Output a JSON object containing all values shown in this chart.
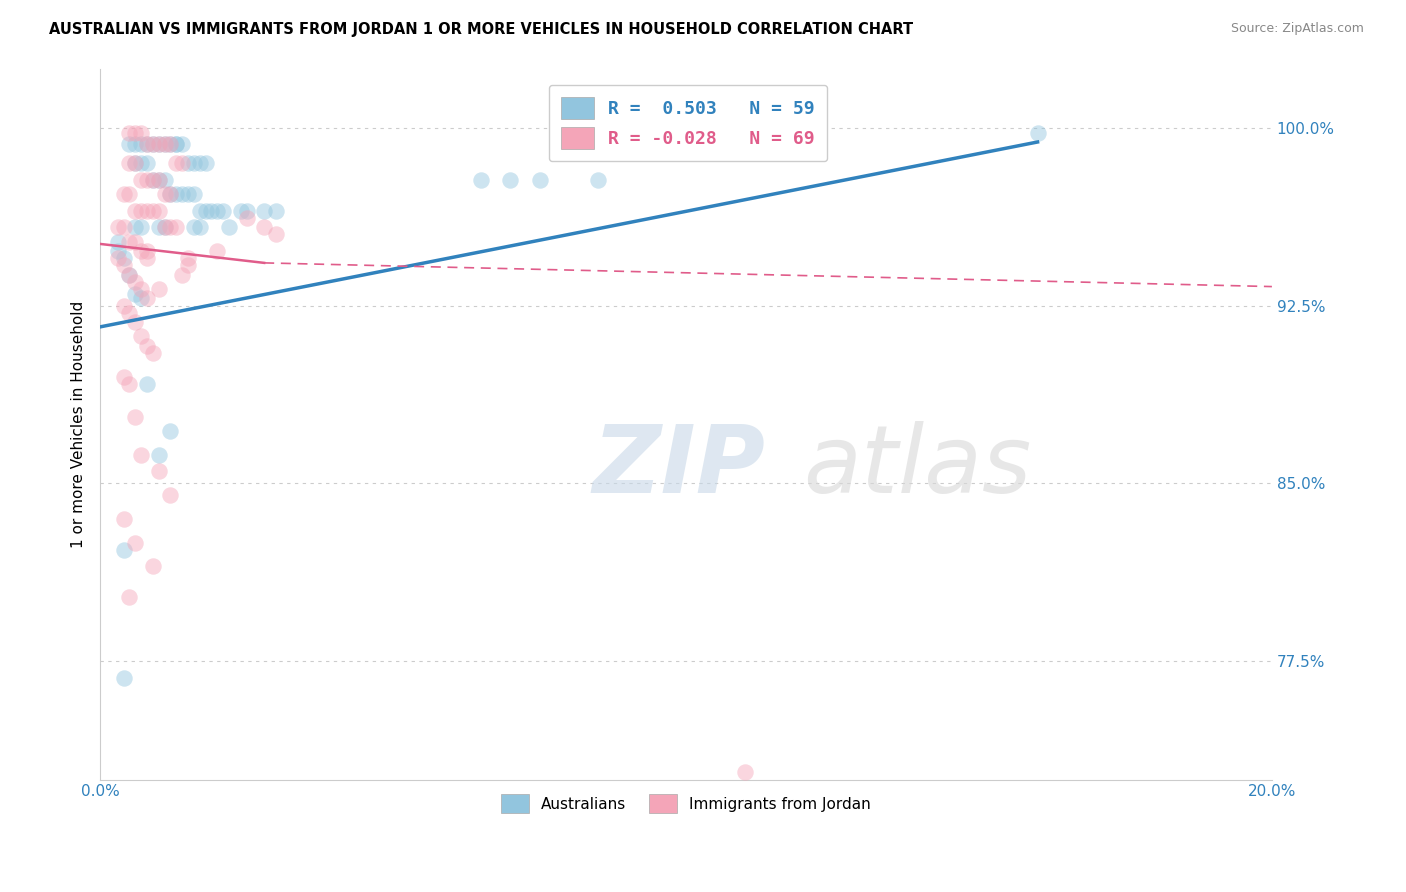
{
  "title": "AUSTRALIAN VS IMMIGRANTS FROM JORDAN 1 OR MORE VEHICLES IN HOUSEHOLD CORRELATION CHART",
  "source": "Source: ZipAtlas.com",
  "ylabel": "1 or more Vehicles in Household",
  "ytick_labels": [
    "77.5%",
    "85.0%",
    "92.5%",
    "100.0%"
  ],
  "ytick_values": [
    0.775,
    0.85,
    0.925,
    1.0
  ],
  "xlim": [
    0.0,
    0.2
  ],
  "ylim": [
    0.725,
    1.025
  ],
  "legend_label1": "Australians",
  "legend_label2": "Immigrants from Jordan",
  "blue_color": "#92c5de",
  "pink_color": "#f4a5b8",
  "blue_line_color": "#3182bd",
  "pink_line_color": "#e05c8a",
  "blue_line": [
    [
      0.0,
      0.916
    ],
    [
      0.16,
      0.994
    ]
  ],
  "pink_solid_line": [
    [
      0.0,
      0.951
    ],
    [
      0.028,
      0.943
    ]
  ],
  "pink_dashed_line": [
    [
      0.028,
      0.943
    ],
    [
      0.2,
      0.933
    ]
  ],
  "blue_scatter": [
    [
      0.005,
      0.993
    ],
    [
      0.006,
      0.993
    ],
    [
      0.007,
      0.993
    ],
    [
      0.008,
      0.993
    ],
    [
      0.009,
      0.993
    ],
    [
      0.01,
      0.993
    ],
    [
      0.011,
      0.993
    ],
    [
      0.012,
      0.993
    ],
    [
      0.013,
      0.993
    ],
    [
      0.013,
      0.993
    ],
    [
      0.014,
      0.993
    ],
    [
      0.015,
      0.985
    ],
    [
      0.016,
      0.985
    ],
    [
      0.017,
      0.985
    ],
    [
      0.018,
      0.985
    ],
    [
      0.006,
      0.985
    ],
    [
      0.007,
      0.985
    ],
    [
      0.008,
      0.985
    ],
    [
      0.009,
      0.978
    ],
    [
      0.01,
      0.978
    ],
    [
      0.011,
      0.978
    ],
    [
      0.012,
      0.972
    ],
    [
      0.013,
      0.972
    ],
    [
      0.014,
      0.972
    ],
    [
      0.015,
      0.972
    ],
    [
      0.016,
      0.972
    ],
    [
      0.017,
      0.965
    ],
    [
      0.018,
      0.965
    ],
    [
      0.019,
      0.965
    ],
    [
      0.02,
      0.965
    ],
    [
      0.021,
      0.965
    ],
    [
      0.024,
      0.965
    ],
    [
      0.025,
      0.965
    ],
    [
      0.028,
      0.965
    ],
    [
      0.065,
      0.978
    ],
    [
      0.07,
      0.978
    ],
    [
      0.075,
      0.978
    ],
    [
      0.085,
      0.978
    ],
    [
      0.16,
      0.998
    ],
    [
      0.006,
      0.958
    ],
    [
      0.007,
      0.958
    ],
    [
      0.01,
      0.958
    ],
    [
      0.011,
      0.958
    ],
    [
      0.016,
      0.958
    ],
    [
      0.017,
      0.958
    ],
    [
      0.022,
      0.958
    ],
    [
      0.03,
      0.965
    ],
    [
      0.003,
      0.952
    ],
    [
      0.004,
      0.945
    ],
    [
      0.005,
      0.938
    ],
    [
      0.006,
      0.93
    ],
    [
      0.007,
      0.928
    ],
    [
      0.008,
      0.892
    ],
    [
      0.012,
      0.872
    ],
    [
      0.004,
      0.822
    ],
    [
      0.01,
      0.862
    ],
    [
      0.004,
      0.768
    ],
    [
      0.003,
      0.948
    ]
  ],
  "pink_scatter": [
    [
      0.005,
      0.998
    ],
    [
      0.006,
      0.998
    ],
    [
      0.007,
      0.998
    ],
    [
      0.008,
      0.993
    ],
    [
      0.009,
      0.993
    ],
    [
      0.01,
      0.993
    ],
    [
      0.011,
      0.993
    ],
    [
      0.012,
      0.993
    ],
    [
      0.013,
      0.985
    ],
    [
      0.014,
      0.985
    ],
    [
      0.005,
      0.985
    ],
    [
      0.006,
      0.985
    ],
    [
      0.007,
      0.978
    ],
    [
      0.008,
      0.978
    ],
    [
      0.009,
      0.978
    ],
    [
      0.01,
      0.978
    ],
    [
      0.011,
      0.972
    ],
    [
      0.012,
      0.972
    ],
    [
      0.004,
      0.972
    ],
    [
      0.005,
      0.972
    ],
    [
      0.006,
      0.965
    ],
    [
      0.007,
      0.965
    ],
    [
      0.008,
      0.965
    ],
    [
      0.009,
      0.965
    ],
    [
      0.01,
      0.965
    ],
    [
      0.011,
      0.958
    ],
    [
      0.003,
      0.958
    ],
    [
      0.004,
      0.958
    ],
    [
      0.005,
      0.952
    ],
    [
      0.006,
      0.952
    ],
    [
      0.007,
      0.948
    ],
    [
      0.008,
      0.945
    ],
    [
      0.003,
      0.945
    ],
    [
      0.004,
      0.942
    ],
    [
      0.005,
      0.938
    ],
    [
      0.006,
      0.935
    ],
    [
      0.007,
      0.932
    ],
    [
      0.008,
      0.928
    ],
    [
      0.004,
      0.925
    ],
    [
      0.005,
      0.922
    ],
    [
      0.006,
      0.918
    ],
    [
      0.007,
      0.912
    ],
    [
      0.008,
      0.908
    ],
    [
      0.009,
      0.905
    ],
    [
      0.01,
      0.932
    ],
    [
      0.004,
      0.895
    ],
    [
      0.005,
      0.892
    ],
    [
      0.006,
      0.878
    ],
    [
      0.007,
      0.862
    ],
    [
      0.01,
      0.855
    ],
    [
      0.012,
      0.845
    ],
    [
      0.004,
      0.835
    ],
    [
      0.006,
      0.825
    ],
    [
      0.009,
      0.815
    ],
    [
      0.005,
      0.802
    ],
    [
      0.025,
      0.962
    ],
    [
      0.028,
      0.958
    ],
    [
      0.014,
      0.938
    ],
    [
      0.015,
      0.942
    ],
    [
      0.02,
      0.948
    ],
    [
      0.015,
      0.945
    ],
    [
      0.008,
      0.948
    ],
    [
      0.012,
      0.958
    ],
    [
      0.013,
      0.958
    ],
    [
      0.03,
      0.955
    ],
    [
      0.11,
      0.728
    ]
  ]
}
